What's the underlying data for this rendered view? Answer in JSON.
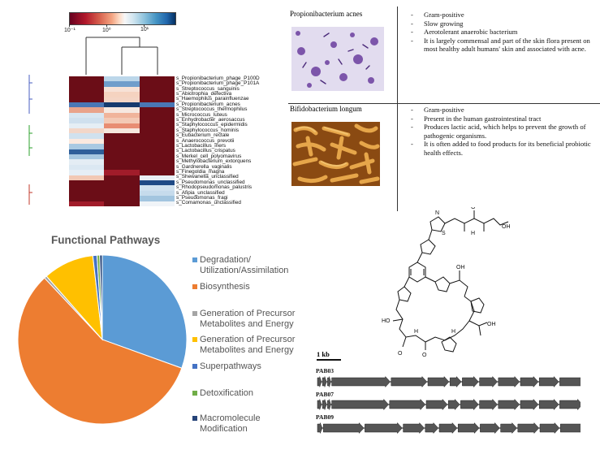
{
  "heatmap": {
    "colorbar_ticks": [
      "10⁻¹",
      "10⁰",
      "10¹"
    ],
    "species": [
      "s_Propionibacterium_phage_P100D",
      "s_Propionibacterium_phage_P101A",
      "s_Streptococcus_sanguinis",
      "s_Abiotrophia_defectiva",
      "s_Haemophilus_parainfluenzae",
      "s_Propionibacterium_acnes",
      "s_Streptococcus_thermophilus",
      "s_Micrococcus_luteus",
      "s_Enhydrobacter_aerosaccus",
      "s_Staphylococcus_epidermidis",
      "s_Staphylococcus_hominis",
      "s_Eubacterium_rectale",
      "s_Anaerococcus_prevotii",
      "s_Lactobacillus_iners",
      "s_Lactobacillus_crispatus",
      "s_Merkel_cell_polyomavirus",
      "s_Methylobacterium_extorquens",
      "s_Gardnerella_vaginalis",
      "s_Finegoldia_magna",
      "s_Shewanella_unclassified",
      "s_Pseudomonas_unclassified",
      "s_Rhodopseudomonas_palustris",
      "s_Afipia_unclassified",
      "s_Pseudomonas_fragi",
      "s_Comamonas_unclassified"
    ],
    "cell_colors": [
      [
        "#6b0d17",
        "#bcd7ea",
        "#6b0d17"
      ],
      [
        "#6b0d17",
        "#6f9ecb",
        "#6b0d17"
      ],
      [
        "#6b0d17",
        "#f7e2d6",
        "#6b0d17"
      ],
      [
        "#6b0d17",
        "#f5d3c0",
        "#6b0d17"
      ],
      [
        "#6b0d17",
        "#f4d5c5",
        "#6b0d17"
      ],
      [
        "#4a77b5",
        "#163a6e",
        "#4a77b5"
      ],
      [
        "#e9a38a",
        "#f6e8e0",
        "#6b0d17"
      ],
      [
        "#d8e6f1",
        "#f0b49b",
        "#6b0d17"
      ],
      [
        "#cfe0ee",
        "#f3c9b5",
        "#6b0d17"
      ],
      [
        "#e5eef5",
        "#e88d73",
        "#6b0d17"
      ],
      [
        "#f2d6c8",
        "#f6e6dd",
        "#6b0d17"
      ],
      [
        "#d0e1ee",
        "#6b0d17",
        "#6b0d17"
      ],
      [
        "#fbe9df",
        "#6b0d17",
        "#6b0d17"
      ],
      [
        "#a9c9e2",
        "#6b0d17",
        "#6b0d17"
      ],
      [
        "#2f5f9a",
        "#6b0d17",
        "#6b0d17"
      ],
      [
        "#a6c7e0",
        "#6b0d17",
        "#6b0d17"
      ],
      [
        "#e4edf4",
        "#6b0d17",
        "#6b0d17"
      ],
      [
        "#dbe8f2",
        "#6b0d17",
        "#6b0d17"
      ],
      [
        "#e6eef5",
        "#a11c2a",
        "#6b0d17"
      ],
      [
        "#f2c8b4",
        "#6b0d17",
        "#e9eff5"
      ],
      [
        "#6b0d17",
        "#6b0d17",
        "#1e4a86"
      ],
      [
        "#6b0d17",
        "#6b0d17",
        "#cfe1ef"
      ],
      [
        "#6b0d17",
        "#6b0d17",
        "#c6dbec"
      ],
      [
        "#6b0d17",
        "#6b0d17",
        "#a3c5df"
      ],
      [
        "#a11c2a",
        "#6b0d17",
        "#f0f4f8"
      ]
    ]
  },
  "bacteria_table": {
    "rows": [
      {
        "name": "Propionibacterium acnes",
        "facts": [
          "Gram-positive",
          "Slow growing",
          "Aerotolerant anaerobic bacterium",
          "It is largely commensal and part of the skin flora present on most healthy adult humans' skin and associated with acne."
        ]
      },
      {
        "name": "Bifidobacterium longum",
        "facts": [
          "Gram-positive",
          "Present in the human gastrointestinal tract",
          "Produces lactic acid, which helps to prevent the growth of pathogenic organisms.",
          "It is often added to food products for its beneficial probiotic health effects."
        ]
      }
    ]
  },
  "pie_chart": {
    "title": "Functional Pathways",
    "chart_data": {
      "type": "pie",
      "title": "Functional Pathways",
      "categories": [
        "Degradation/ Utilization/Assimilation",
        "Biosynthesis",
        "Generation of Precursor Metabolites and Energy",
        "Generation of Precursor Metabolites and Energy",
        "Superpathways",
        "Detoxification",
        "Macromolecule Modification"
      ],
      "values": [
        30.5,
        57.5,
        0.5,
        9.7,
        0.8,
        0.5,
        0.5
      ],
      "colors": [
        "#5b9bd5",
        "#ed7d31",
        "#a5a5a5",
        "#ffc000",
        "#4472c4",
        "#70ad47",
        "#264478"
      ],
      "legend": "right"
    },
    "legend_items": [
      {
        "label": "Degradation/\nUtilization/Assimilation",
        "color": "#5b9bd5"
      },
      {
        "label": "Biosynthesis",
        "color": "#ed7d31"
      },
      {
        "label": "Generation of Precursor\nMetabolites and Energy",
        "color": "#a5a5a5"
      },
      {
        "label": "Generation of Precursor\nMetabolites and Energy",
        "color": "#ffc000"
      },
      {
        "label": "Superpathways",
        "color": "#4472c4"
      },
      {
        "label": "Detoxification",
        "color": "#70ad47"
      },
      {
        "label": "Macromolecule\nModification",
        "color": "#264478"
      }
    ]
  },
  "molecule": {
    "atom_labels": [
      "N",
      "S",
      "O",
      "H",
      "OH",
      "HO"
    ]
  },
  "gene_clusters": {
    "scale_label": "1 kb",
    "clusters": [
      {
        "name": "PAB03",
        "lengths": [
          5,
          5,
          4,
          72,
          44,
          26,
          14,
          20,
          22,
          26,
          22,
          24,
          36,
          26,
          32,
          24
        ]
      },
      {
        "name": "PAB07",
        "lengths": [
          5,
          5,
          4,
          70,
          44,
          26,
          14,
          22,
          22,
          26,
          22,
          24,
          28,
          28,
          30,
          18
        ]
      },
      {
        "name": "PAB09",
        "lengths": [
          6,
          50,
          46,
          26,
          16,
          22,
          26,
          24,
          20,
          26,
          24,
          36,
          22,
          24,
          30
        ]
      }
    ]
  }
}
